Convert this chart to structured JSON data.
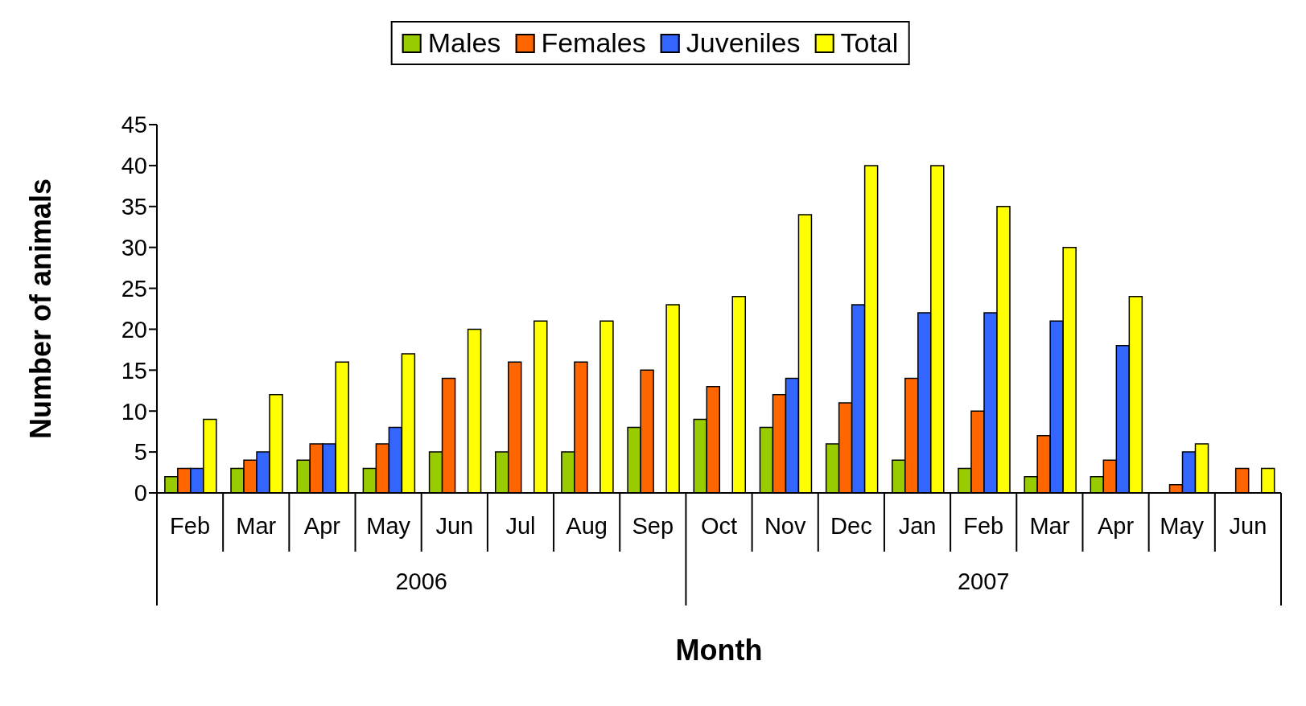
{
  "chart_data": {
    "type": "bar",
    "xlabel": "Month",
    "ylabel": "Number of animals",
    "categories": [
      "Feb",
      "Mar",
      "Apr",
      "May",
      "Jun",
      "Jul",
      "Aug",
      "Sep",
      "Oct",
      "Nov",
      "Dec",
      "Jan",
      "Feb",
      "Mar",
      "Apr",
      "May",
      "Jun"
    ],
    "annotations": [
      "2006",
      "2007"
    ],
    "series": [
      {
        "name": "Males",
        "color": "#99cc00",
        "values": [
          2,
          3,
          4,
          3,
          5,
          5,
          5,
          8,
          9,
          8,
          6,
          4,
          3,
          2,
          2,
          null,
          null
        ]
      },
      {
        "name": "Females",
        "color": "#ff6600",
        "values": [
          3,
          4,
          6,
          6,
          14,
          16,
          16,
          15,
          13,
          12,
          11,
          14,
          10,
          7,
          4,
          1,
          3
        ]
      },
      {
        "name": "Juveniles",
        "color": "#3366ff",
        "values": [
          3,
          5,
          6,
          8,
          null,
          null,
          null,
          null,
          null,
          14,
          23,
          22,
          22,
          21,
          18,
          5,
          null
        ]
      },
      {
        "name": "Total",
        "color": "#ffff00",
        "values": [
          9,
          12,
          16,
          17,
          20,
          21,
          21,
          23,
          24,
          34,
          40,
          40,
          35,
          30,
          24,
          6,
          3
        ]
      }
    ],
    "ylim": [
      0,
      45
    ],
    "yticks": [
      0,
      5,
      10,
      15,
      20,
      25,
      30,
      35,
      40,
      45
    ],
    "legend": "top"
  }
}
